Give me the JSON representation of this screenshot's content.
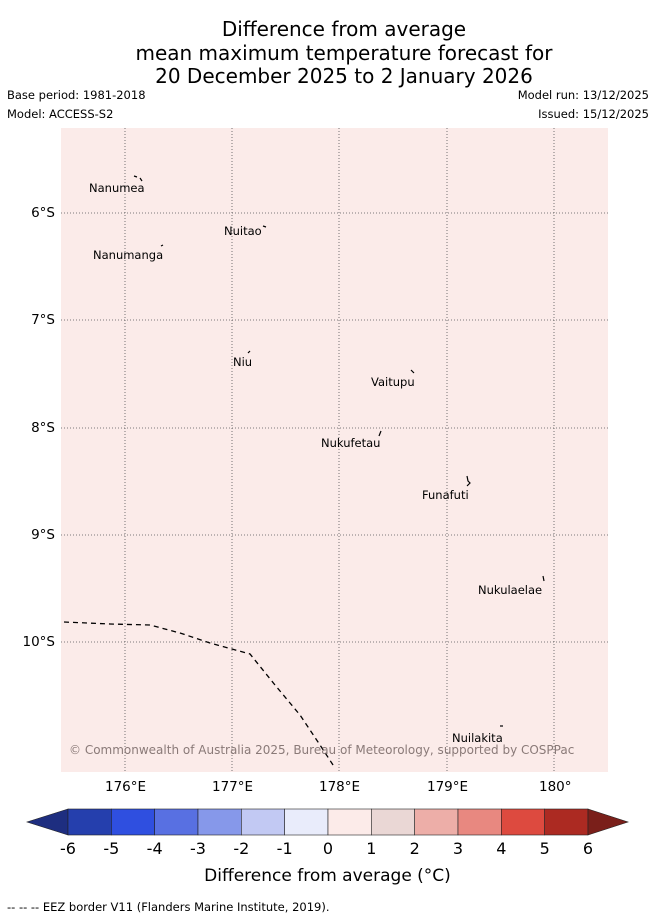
{
  "title": [
    "Difference from average",
    "mean maximum temperature forecast for",
    "20 December 2025 to 2 January 2026"
  ],
  "base_period": "Base period: 1981-2018",
  "model": "Model: ACCESS-S2",
  "model_run": "Model run: 13/12/2025",
  "issued": "Issued: 15/12/2025",
  "map": {
    "lon_ticks": [
      "176°E",
      "177°E",
      "178°E",
      "179°E",
      "180°"
    ],
    "lat_ticks": [
      "6°S",
      "7°S",
      "8°S",
      "9°S",
      "10°S"
    ],
    "places": [
      "Nanumea",
      "Nuitao",
      "Nanumanga",
      "Niu",
      "Vaitupu",
      "Nukufetau",
      "Funafuti",
      "Nukulaelae",
      "Nuilakita"
    ],
    "copyright": "© Commonwealth of Australia 2025, Bureau of Meteorology, supported by COSPPac",
    "background_category": "0 to 1",
    "background_color": "#fbebe9"
  },
  "colorbar": {
    "ticks": [
      "-6",
      "-5",
      "-4",
      "-3",
      "-2",
      "-1",
      "0",
      "1",
      "2",
      "3",
      "4",
      "5",
      "6"
    ],
    "colors": [
      "#1e2e80",
      "#253fad",
      "#2f4fe0",
      "#5870e2",
      "#8698ea",
      "#c2c9f3",
      "#e9ecfb",
      "#fcebe9",
      "#ead7d5",
      "#edaea8",
      "#e88880",
      "#dd4a3f",
      "#ac2a22",
      "#7a1f1a"
    ],
    "label": "Difference from average (°C)"
  },
  "footer": "-- -- -- EEZ border V11 (Flanders Marine Institute, 2019)."
}
